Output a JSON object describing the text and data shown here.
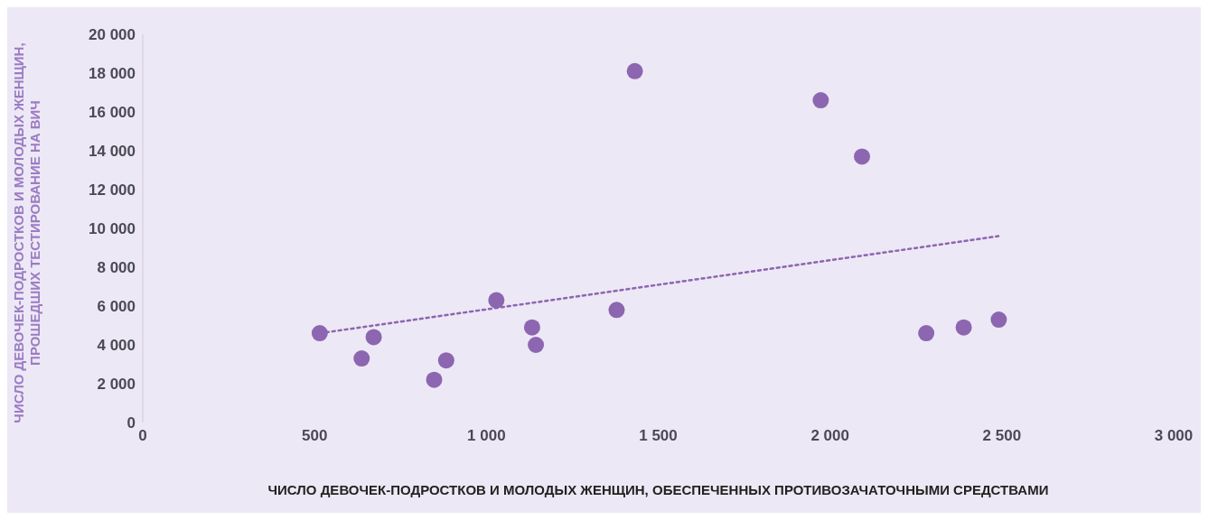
{
  "chart_data": {
    "type": "scatter",
    "xlabel": "ЧИСЛО ДЕВОЧЕК-ПОДРОСТКОВ И МОЛОДЫХ ЖЕНЩИН, ОБЕСПЕЧЕННЫХ ПРОТИВОЗАЧАТОЧНЫМИ СРЕДСТВАМИ",
    "ylabel": "ЧИСЛО ДЕВОЧЕК-ПОДРОСТКОВ И МОЛОДЫХ ЖЕНЩИН,\nПРОШЕДШИХ ТЕСТИРОВАНИЕ НА ВИЧ",
    "xlim": [
      0,
      3000
    ],
    "xticks": [
      0,
      500,
      {
        "value": 1000,
        "label": "1 000"
      },
      {
        "value": 1500,
        "label": "1 500"
      },
      {
        "value": 2000,
        "label": "2 000"
      },
      {
        "value": 2500,
        "label": "2 500"
      },
      {
        "value": 3000,
        "label": "3 000"
      }
    ],
    "ylim": [
      0,
      20000
    ],
    "yticks": [
      0,
      {
        "value": 2000,
        "label": "2 000"
      },
      {
        "value": 4000,
        "label": "4 000"
      },
      {
        "value": 6000,
        "label": "6 000"
      },
      {
        "value": 8000,
        "label": "8 000"
      },
      {
        "value": 10000,
        "label": "10 000"
      },
      {
        "value": 12000,
        "label": "12 000"
      },
      {
        "value": 14000,
        "label": "14 000"
      },
      {
        "value": 16000,
        "label": "16 000"
      },
      {
        "value": 18000,
        "label": "18 000"
      },
      {
        "value": 20000,
        "label": "20 000"
      }
    ],
    "grid": false,
    "legend": false,
    "series": [
      {
        "type": "scatter",
        "color": "#8c66b0",
        "marker": "circle",
        "x": [
          515,
          637,
          672,
          848,
          883,
          1029,
          1133,
          1144,
          1379,
          1432,
          1973,
          2093,
          2280,
          2389,
          2491
        ],
        "values": [
          4600,
          3300,
          4400,
          2200,
          3200,
          6300,
          4900,
          4000,
          5800,
          18100,
          16600,
          13700,
          4600,
          4900,
          5300
        ]
      },
      {
        "type": "line",
        "color": "#8c66b0",
        "marker": "none",
        "line_style": "dotted",
        "x": [
          515,
          2490
        ],
        "values": [
          4600,
          9600
        ]
      }
    ]
  }
}
